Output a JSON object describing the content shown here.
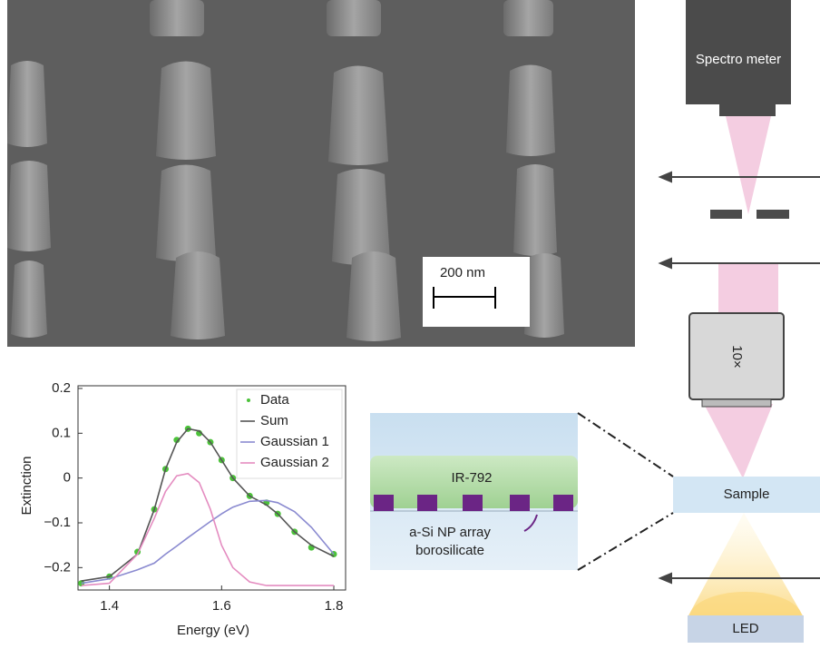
{
  "chart_data": {
    "type": "line",
    "xlabel": "Energy (eV)",
    "ylabel": "Extinction",
    "x": [
      1.35,
      1.4,
      1.45,
      1.48,
      1.5,
      1.52,
      1.54,
      1.56,
      1.58,
      1.6,
      1.62,
      1.65,
      1.68,
      1.7,
      1.73,
      1.76,
      1.8
    ],
    "series": [
      {
        "name": "Data",
        "color": "#4cc23a",
        "marker": "dot",
        "values": [
          -0.235,
          -0.22,
          -0.165,
          -0.07,
          0.02,
          0.085,
          0.11,
          0.1,
          0.08,
          0.04,
          0.0,
          -0.04,
          -0.055,
          -0.08,
          -0.12,
          -0.155,
          -0.17
        ]
      },
      {
        "name": "Sum",
        "color": "#555555",
        "values": [
          -0.23,
          -0.22,
          -0.17,
          -0.07,
          0.02,
          0.08,
          0.11,
          0.105,
          0.08,
          0.04,
          0.0,
          -0.04,
          -0.06,
          -0.08,
          -0.12,
          -0.15,
          -0.175
        ]
      },
      {
        "name": "Gaussian 1",
        "color": "#8a8ad0",
        "values": [
          -0.235,
          -0.225,
          -0.205,
          -0.19,
          -0.17,
          -0.152,
          -0.133,
          -0.115,
          -0.097,
          -0.08,
          -0.065,
          -0.052,
          -0.05,
          -0.055,
          -0.075,
          -0.11,
          -0.17
        ]
      },
      {
        "name": "Gaussian 2",
        "color": "#e48cc0",
        "values": [
          -0.24,
          -0.235,
          -0.17,
          -0.09,
          -0.03,
          0.005,
          0.01,
          -0.01,
          -0.07,
          -0.15,
          -0.2,
          -0.232,
          -0.24,
          -0.24,
          -0.24,
          -0.24,
          -0.24
        ]
      }
    ],
    "xlim": [
      1.344,
      1.821
    ],
    "ylim": [
      -0.25,
      0.206
    ],
    "xticks": [
      1.4,
      1.6,
      1.8
    ],
    "yticks": [
      0.2,
      0.1,
      0,
      {
        "value": -0.1,
        "label": "−0.1"
      },
      {
        "value": -0.2,
        "label": "−0.2"
      }
    ],
    "legend": "upper right"
  },
  "sem_image": {
    "scale_bar": "200 nm"
  },
  "setup": {
    "spectrometer": "Spectro meter",
    "objective": "10×",
    "sample": "Sample",
    "source": "LED"
  },
  "sample_cell": {
    "dye": "IR-792",
    "array": "a-Si NP array",
    "substrate": "borosilicate"
  }
}
